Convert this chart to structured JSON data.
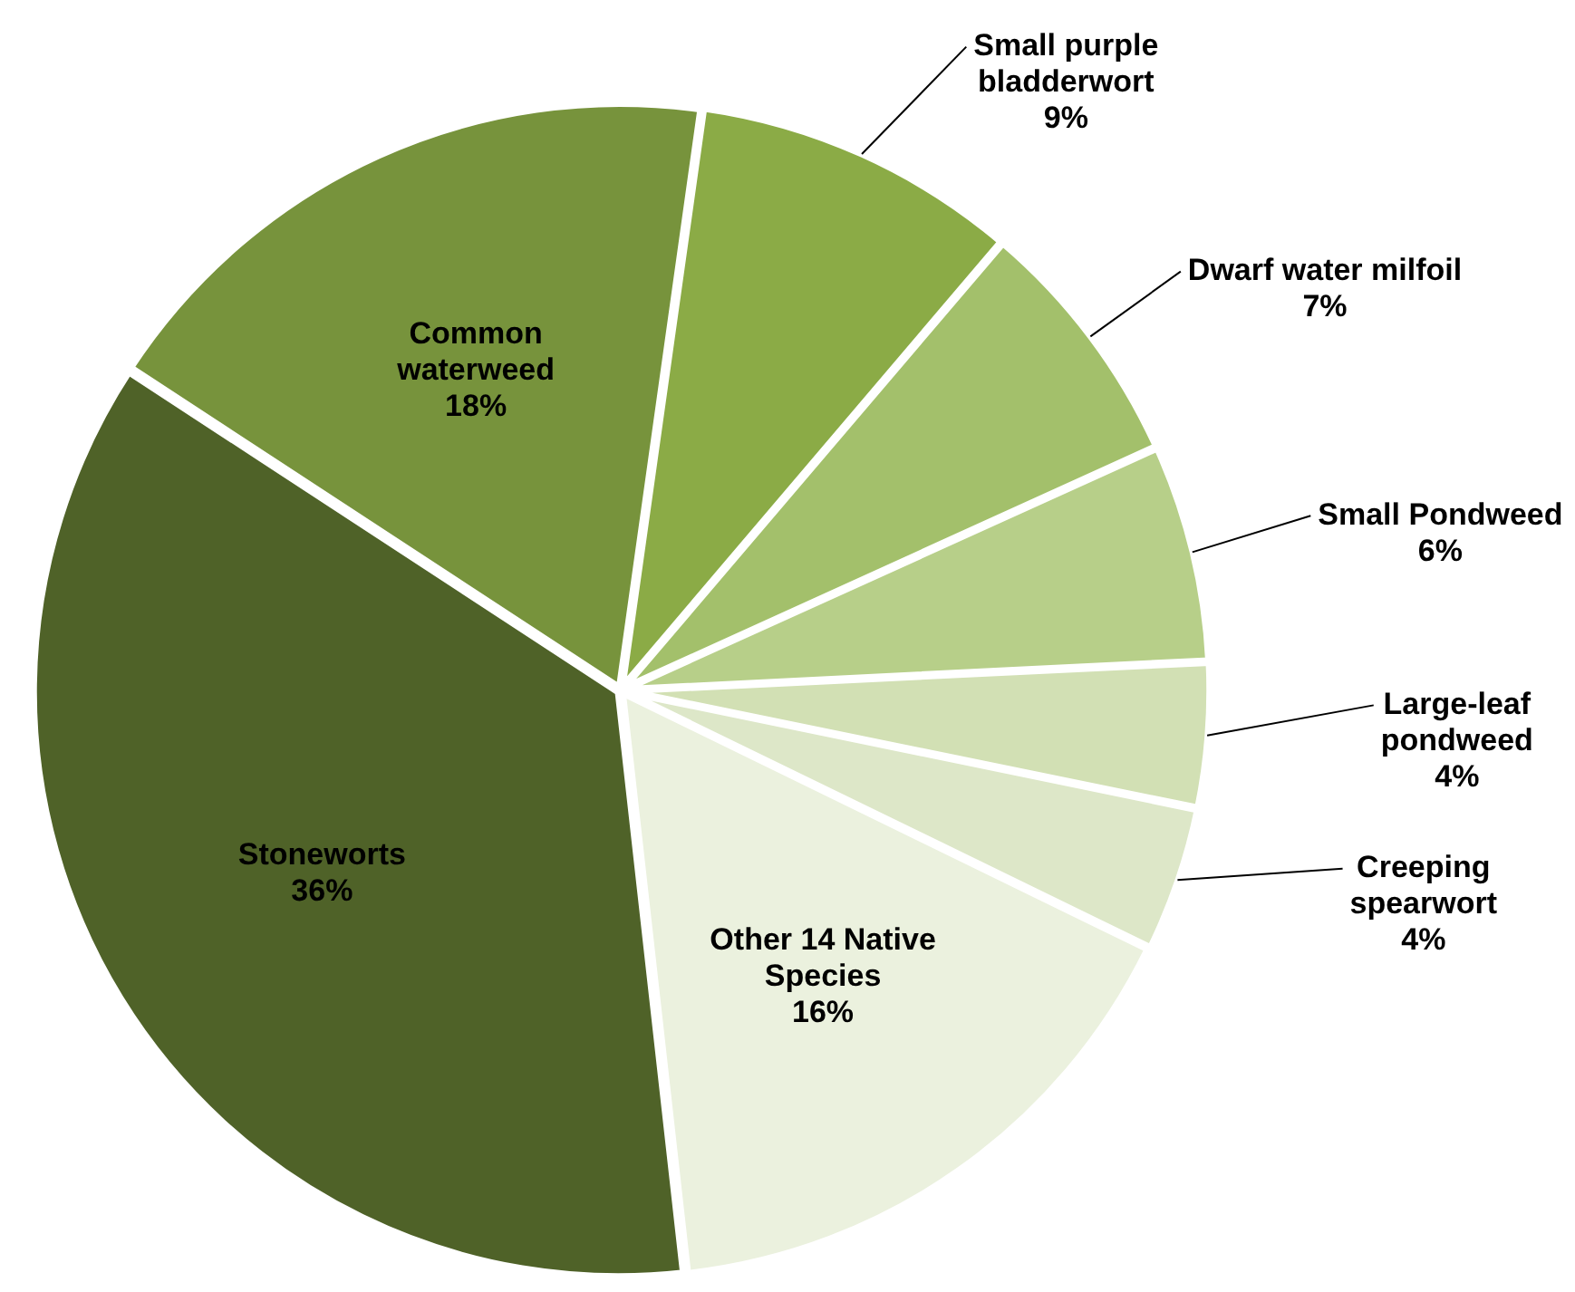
{
  "chart_data": {
    "type": "pie",
    "categories": [
      "Small purple bladderwort",
      "Dwarf water milfoil",
      "Small Pondweed",
      "Large-leaf pondweed",
      "Creeping spearwort",
      "Other 14 Native Species",
      "Stoneworts",
      "Common waterweed"
    ],
    "values": [
      9,
      7,
      6,
      4,
      4,
      16,
      36,
      18
    ],
    "value_labels": [
      "9%",
      "7%",
      "6%",
      "4%",
      "4%",
      "16%",
      "36%",
      "18%"
    ],
    "colors": [
      "#8bab46",
      "#a3c06b",
      "#b7cf89",
      "#d2e0b4",
      "#dde7c8",
      "#ebf1de",
      "#4f6228",
      "#77933c"
    ],
    "legend": false
  }
}
